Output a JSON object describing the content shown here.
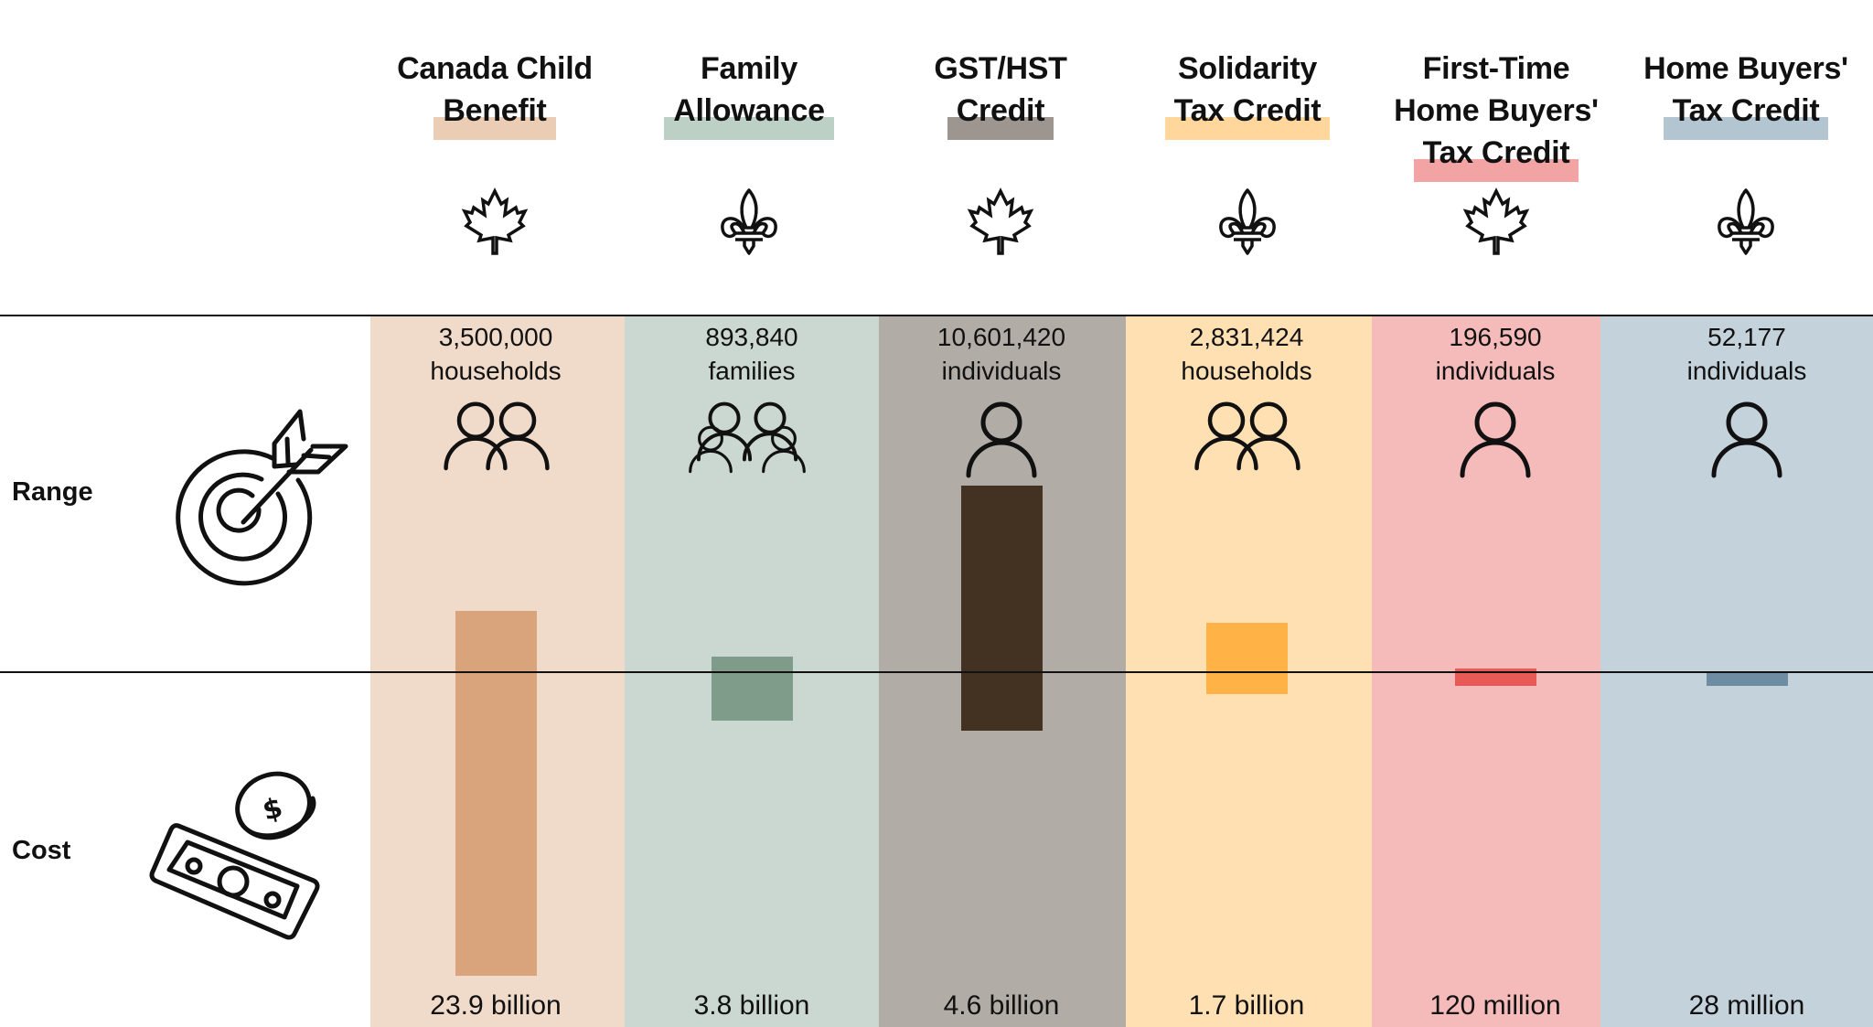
{
  "rows": {
    "range_label": "Range",
    "cost_label": "Cost",
    "range_icon": "target-arrow-icon",
    "cost_icon": "money-bill-coin-icon"
  },
  "programs": [
    {
      "name_lines": [
        "Canada Child",
        "Benefit"
      ],
      "jurisdiction": "federal",
      "jurisdiction_icon": "maple-leaf-icon",
      "recipients": "3,500,000",
      "unit": "households",
      "people_icon": "two-people-icon",
      "cost": "23.9 billion",
      "bg": "#f0dac9",
      "bar": "#d9a47b",
      "highlight": "#ebcdb5"
    },
    {
      "name_lines": [
        "Family",
        "Allowance"
      ],
      "jurisdiction": "quebec",
      "jurisdiction_icon": "fleur-de-lis-icon",
      "recipients": "893,840",
      "unit": "families",
      "people_icon": "family-icon",
      "cost": "3.8 billion",
      "bg": "#cbd7d1",
      "bar": "#7e9c89",
      "highlight": "#bcd0c6"
    },
    {
      "name_lines": [
        "GST/HST",
        "Credit"
      ],
      "jurisdiction": "federal",
      "jurisdiction_icon": "maple-leaf-icon",
      "recipients": "10,601,420",
      "unit": "individuals",
      "people_icon": "person-icon",
      "cost": "4.6 billion",
      "bg": "#b1aca6",
      "bar": "#433122",
      "highlight": "#9d9590"
    },
    {
      "name_lines": [
        "Solidarity",
        "Tax Credit"
      ],
      "jurisdiction": "quebec",
      "jurisdiction_icon": "fleur-de-lis-icon",
      "recipients": "2,831,424",
      "unit": "households",
      "people_icon": "two-people-icon",
      "cost": "1.7 billion",
      "bg": "#ffe0b3",
      "bar": "#ffb347",
      "highlight": "#ffd79d"
    },
    {
      "name_lines": [
        "First-Time",
        "Home Buyers'",
        "Tax Credit"
      ],
      "jurisdiction": "federal",
      "jurisdiction_icon": "maple-leaf-icon",
      "recipients": "196,590",
      "unit": "individuals",
      "people_icon": "person-icon",
      "cost": "120 million",
      "bg": "#f5bbba",
      "bar": "#e85a56",
      "highlight": "#f2a4a4"
    },
    {
      "name_lines": [
        "Home Buyers'",
        "Tax Credit"
      ],
      "jurisdiction": "quebec",
      "jurisdiction_icon": "fleur-de-lis-icon",
      "recipients": "52,177",
      "unit": "individuals",
      "people_icon": "person-icon",
      "cost": "28 million",
      "bg": "#c4d2dc",
      "bar": "#6e8da3",
      "highlight": "#b3c5d1"
    }
  ],
  "chart_data": {
    "type": "bar",
    "title": "",
    "categories": [
      "Canada Child Benefit",
      "Family Allowance",
      "GST/HST Credit",
      "Solidarity Tax Credit",
      "First-Time Home Buyers' Tax Credit",
      "Home Buyers' Tax Credit"
    ],
    "series": [
      {
        "name": "Range (recipients)",
        "values": [
          3500000,
          893840,
          10601420,
          2831424,
          196590,
          52177
        ],
        "units": [
          "households",
          "families",
          "individuals",
          "households",
          "individuals",
          "individuals"
        ],
        "direction": "up"
      },
      {
        "name": "Cost ($)",
        "values": [
          23900000000,
          3800000000,
          4600000000,
          1700000000,
          120000000,
          28000000
        ],
        "direction": "down"
      }
    ],
    "value_labels_range": [
      "3,500,000 households",
      "893,840 families",
      "10,601,420 individuals",
      "2,831,424 households",
      "196,590 individuals",
      "52,177 individuals"
    ],
    "value_labels_cost": [
      "23.9 billion",
      "3.8 billion",
      "4.6 billion",
      "1.7 billion",
      "120 million",
      "28 million"
    ],
    "xlabel": "",
    "ylabel": "",
    "legend": "none",
    "grid": false
  }
}
